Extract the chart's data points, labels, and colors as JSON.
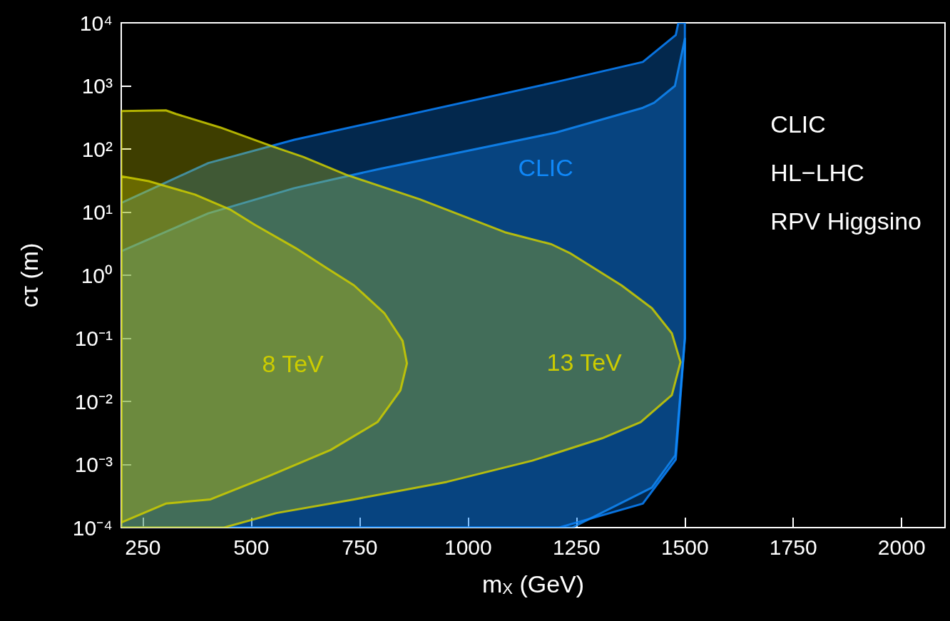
{
  "chart_data": {
    "type": "area",
    "xlabel": "m$_{X}$ (GeV)",
    "ylabel": "cτ (m)",
    "xlim": [
      200,
      2100
    ],
    "xticks": [
      250,
      500,
      750,
      1000,
      1250,
      1500,
      1750,
      2000
    ],
    "ylim": [
      0.0001,
      10000
    ],
    "yticks": [
      {
        "value": 0.0001,
        "label": "10⁻⁴"
      },
      {
        "value": 0.001,
        "label": "10⁻³"
      },
      {
        "value": 0.01,
        "label": "10⁻²"
      },
      {
        "value": 0.1,
        "label": "10⁻¹"
      },
      {
        "value": 1,
        "label": "10⁰"
      },
      {
        "value": 10,
        "label": "10¹"
      },
      {
        "value": 100,
        "label": "10²"
      },
      {
        "value": 1000,
        "label": "10³"
      },
      {
        "value": 10000,
        "label": "10⁴"
      }
    ],
    "log": "y",
    "annotations": [
      "CLIC\nHL−LHC\nRPV Higgsino"
    ],
    "series": [
      {
        "color": "#0a84ff",
        "x": [
          200,
          401,
          599,
          1202,
          1403,
          1479,
          1485,
          1500,
          1500,
          1479,
          1403,
          1210,
          200
        ],
        "values": [
          14,
          60,
          140,
          1150,
          2400,
          6400,
          10000,
          10000,
          0.1,
          0.0012,
          0.00024,
          0.0001,
          0.0001
        ]
      },
      {
        "name": "CLIC",
        "color": "#1088f8",
        "x": [
          200,
          401,
          599,
          799,
          1202,
          1403,
          1429,
          1477,
          1500,
          1500,
          1478,
          1424,
          1240,
          200
        ],
        "values": [
          2.4,
          9.6,
          24,
          49,
          182,
          450,
          540,
          1000,
          5600,
          0.1,
          0.0014,
          0.00043,
          0.0001,
          0.0001
        ]
      },
      {
        "name": "13 TeV",
        "color": "#cccc00",
        "x": [
          200,
          303,
          326,
          428,
          549,
          620,
          719,
          888,
          1085,
          1192,
          1237,
          1354,
          1424,
          1470,
          1490,
          1470,
          1398,
          1309,
          1148,
          951,
          737,
          558,
          437,
          200
        ],
        "values": [
          400,
          410,
          360,
          220,
          110,
          75,
          39,
          16,
          4.8,
          3.1,
          2.2,
          0.69,
          0.3,
          0.12,
          0.042,
          0.0126,
          0.0047,
          0.0026,
          0.00115,
          0.00053,
          0.00028,
          0.00017,
          0.0001,
          0.0001
        ]
      },
      {
        "name": "8 TeV",
        "color": "#cccc00",
        "x": [
          200,
          263,
          370,
          451,
          508,
          602,
          674,
          737,
          807,
          849,
          859,
          844,
          791,
          683,
          539,
          406,
          303,
          200
        ],
        "values": [
          37,
          31,
          19,
          11,
          6.3,
          2.7,
          1.3,
          0.69,
          0.25,
          0.091,
          0.04,
          0.015,
          0.0047,
          0.0017,
          0.00065,
          0.00028,
          0.00024,
          0.00012
        ]
      }
    ]
  }
}
